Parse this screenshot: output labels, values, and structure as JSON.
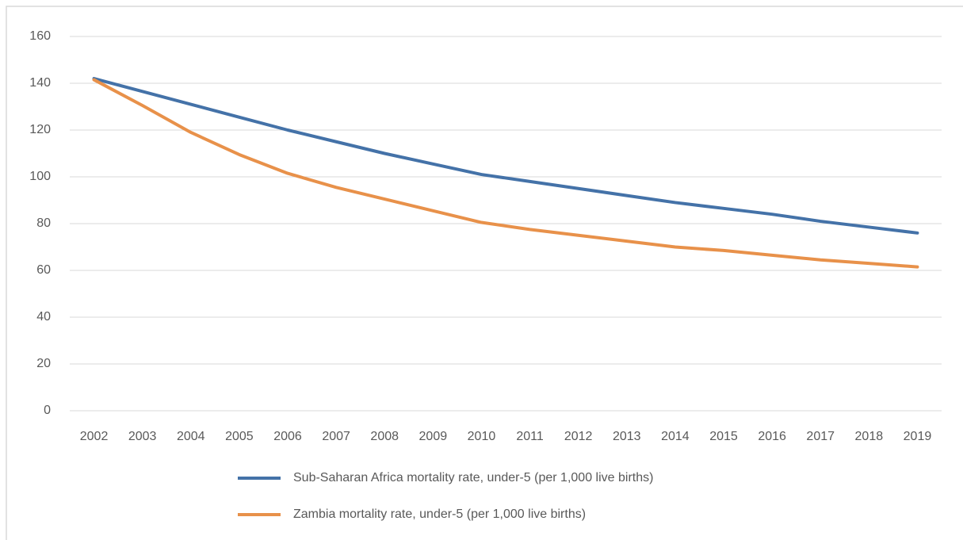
{
  "chart_data": {
    "type": "line",
    "categories": [
      "2002",
      "2003",
      "2004",
      "2005",
      "2006",
      "2007",
      "2008",
      "2009",
      "2010",
      "2011",
      "2012",
      "2013",
      "2014",
      "2015",
      "2016",
      "2017",
      "2018",
      "2019"
    ],
    "series": [
      {
        "name": "Sub-Saharan Africa mortality rate, under-5 (per 1,000 live births)",
        "color": "#4472a8",
        "values": [
          142,
          136.5,
          131,
          125.5,
          120,
          115,
          110,
          105.5,
          101,
          98,
          95,
          92,
          89,
          86.5,
          84,
          81,
          78.5,
          76
        ]
      },
      {
        "name": "Zambia mortality rate, under-5 (per 1,000 live births)",
        "color": "#e8914a",
        "values": [
          141.5,
          130.5,
          119,
          109.5,
          101.5,
          95.5,
          90.5,
          85.5,
          80.5,
          77.5,
          75,
          72.5,
          70,
          68.5,
          66.5,
          64.5,
          63,
          61.5
        ]
      }
    ],
    "ylim": [
      0,
      160
    ],
    "yticks": [
      0,
      20,
      40,
      60,
      80,
      100,
      120,
      140,
      160
    ],
    "grid": true,
    "legend": "bottom"
  }
}
